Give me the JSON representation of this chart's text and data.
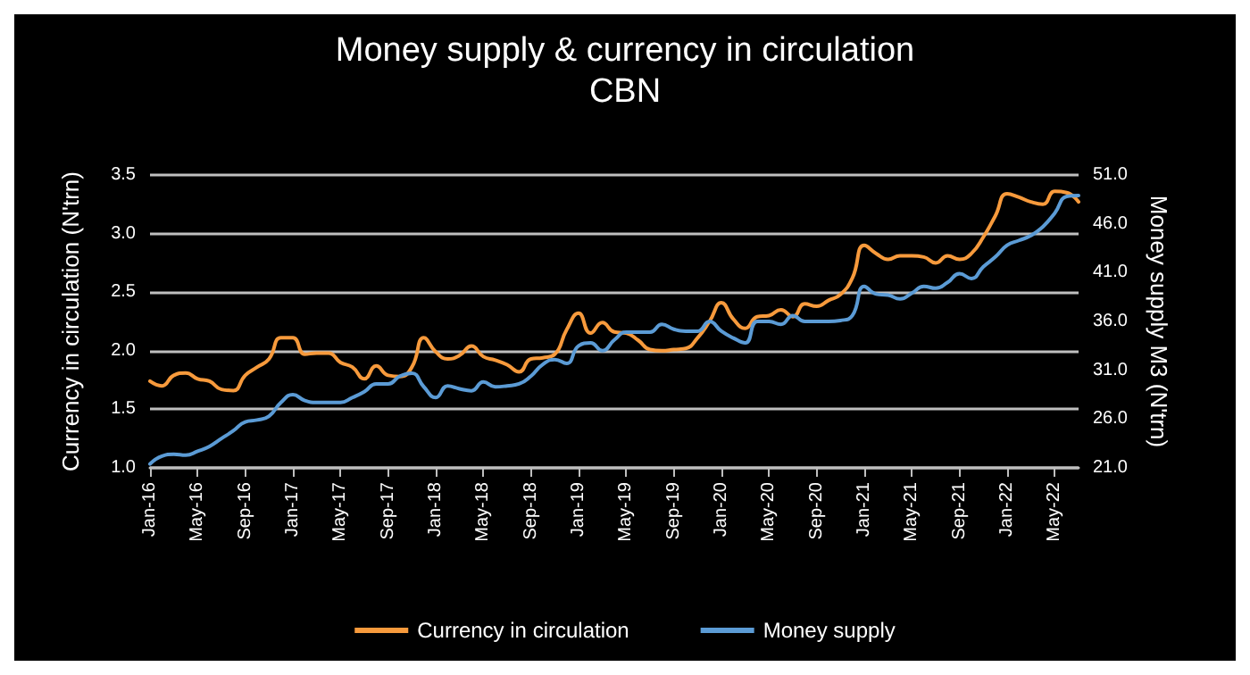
{
  "chart_data": {
    "type": "line",
    "title": "Money supply & currency in circulation",
    "subtitle": "CBN",
    "ylabel": "Currency in circulation (N'trn)",
    "y2label": "Money supply M3 (N'trn)",
    "categories": [
      "Jan-16",
      null,
      null,
      null,
      "May-16",
      null,
      null,
      null,
      "Sep-16",
      null,
      null,
      null,
      "Jan-17",
      null,
      null,
      null,
      "May-17",
      null,
      null,
      null,
      "Sep-17",
      null,
      null,
      null,
      "Jan-18",
      null,
      null,
      null,
      "May-18",
      null,
      null,
      null,
      "Sep-18",
      null,
      null,
      null,
      "Jan-19",
      null,
      null,
      null,
      "May-19",
      null,
      null,
      null,
      "Sep-19",
      null,
      null,
      null,
      "Jan-20",
      null,
      null,
      null,
      "May-20",
      null,
      null,
      null,
      "Sep-20",
      null,
      null,
      null,
      "Jan-21",
      null,
      null,
      null,
      "May-21",
      null,
      null,
      null,
      "Sep-21",
      null,
      null,
      null,
      "Jan-22",
      null,
      null,
      null,
      "May-22",
      null,
      null
    ],
    "series": [
      {
        "name": "Currency in circulation",
        "color": "#f79a3c",
        "values": [
          1.74,
          1.7,
          1.79,
          1.81,
          1.76,
          1.74,
          1.67,
          1.66,
          1.79,
          1.86,
          1.93,
          2.11,
          2.11,
          1.97,
          1.98,
          1.98,
          1.9,
          1.86,
          1.76,
          1.87,
          1.79,
          1.78,
          1.86,
          2.11,
          1.99,
          1.93,
          1.96,
          2.04,
          1.95,
          1.92,
          1.88,
          1.82,
          1.93,
          1.94,
          1.97,
          2.18,
          2.32,
          2.15,
          2.24,
          2.16,
          2.15,
          2.09,
          2.01,
          2.0,
          2.01,
          2.02,
          2.11,
          2.25,
          2.41,
          2.27,
          2.19,
          2.29,
          2.3,
          2.35,
          2.29,
          2.4,
          2.38,
          2.43,
          2.48,
          2.62,
          2.9,
          2.83,
          2.78,
          2.81,
          2.81,
          2.8,
          2.75,
          2.81,
          2.78,
          2.83,
          2.97,
          3.15,
          3.34,
          3.31,
          3.27,
          3.25,
          3.36,
          3.35,
          3.27
        ]
      },
      {
        "name": "Money supply",
        "color": "#5b9bd5",
        "axis": "y2",
        "values": [
          21.4,
          22.2,
          22.4,
          22.3,
          22.7,
          23.2,
          24.0,
          24.8,
          25.7,
          25.9,
          26.3,
          27.7,
          28.5,
          27.9,
          27.7,
          27.7,
          27.7,
          28.2,
          28.8,
          29.6,
          29.6,
          30.4,
          30.7,
          29.3,
          28.2,
          29.4,
          29.1,
          28.9,
          29.8,
          29.3,
          29.4,
          29.6,
          30.4,
          31.6,
          32.1,
          31.7,
          33.5,
          33.8,
          33.0,
          34.1,
          34.9,
          34.9,
          34.9,
          35.7,
          35.2,
          35.0,
          35.0,
          36.0,
          35.0,
          34.3,
          33.8,
          36.0,
          36.0,
          35.7,
          36.6,
          36.0,
          36.0,
          36.0,
          36.1,
          36.6,
          39.6,
          38.8,
          38.7,
          38.3,
          38.9,
          39.6,
          39.4,
          40.0,
          40.9,
          40.4,
          41.6,
          42.6,
          43.8,
          44.3,
          44.8,
          45.7,
          47.1,
          48.8,
          48.9
        ]
      }
    ],
    "ylim": [
      1.0,
      3.5
    ],
    "yticks": [
      {
        "value": 1.0,
        "label": "1.0"
      },
      {
        "value": 1.5,
        "label": "1.5"
      },
      {
        "value": 2.0,
        "label": "2.0"
      },
      {
        "value": 2.5,
        "label": "2.5"
      },
      {
        "value": 3.0,
        "label": "3.0"
      },
      {
        "value": 3.5,
        "label": "3.5"
      }
    ],
    "y2lim": [
      21.0,
      51.0
    ],
    "y2ticks": [
      {
        "value": 21,
        "label": "21.0"
      },
      {
        "value": 26,
        "label": "26.0"
      },
      {
        "value": 31,
        "label": "31.0"
      },
      {
        "value": 36,
        "label": "36.0"
      },
      {
        "value": 41,
        "label": "41.0"
      },
      {
        "value": 46,
        "label": "46.0"
      },
      {
        "value": 51,
        "label": "51.0"
      }
    ],
    "grid": "y",
    "legend": "bottom",
    "marker": "none",
    "line_style": "solid"
  }
}
